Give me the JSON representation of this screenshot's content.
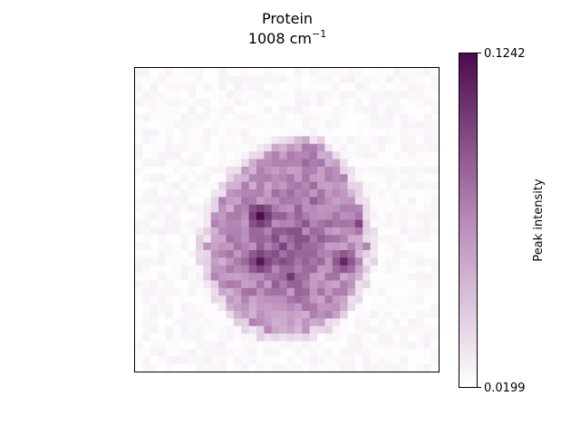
{
  "chart_data": {
    "type": "heatmap",
    "title": "Protein",
    "subtitle_value": "1008 cm",
    "subtitle_exponent": "−1",
    "xlabel": "",
    "ylabel": "",
    "colorbar": {
      "label": "Peak intensity",
      "min": 0.0199,
      "max": 0.1242,
      "min_label": "0.0199",
      "max_label": "0.1242",
      "color_low": "#ffffff",
      "color_high": "#4d0a4d",
      "ticks_only_at_ends": true
    },
    "grid_rows": 40,
    "grid_cols": 40,
    "ticks_visible": false,
    "cell_shape": "blob",
    "hotspots": [
      {
        "row": 19,
        "col": 16,
        "value": 0.124
      },
      {
        "row": 25,
        "col": 16,
        "value": 0.12
      },
      {
        "row": 25,
        "col": 27,
        "value": 0.112
      },
      {
        "row": 27,
        "col": 20,
        "value": 0.105
      },
      {
        "row": 20,
        "col": 29,
        "value": 0.1
      }
    ]
  }
}
